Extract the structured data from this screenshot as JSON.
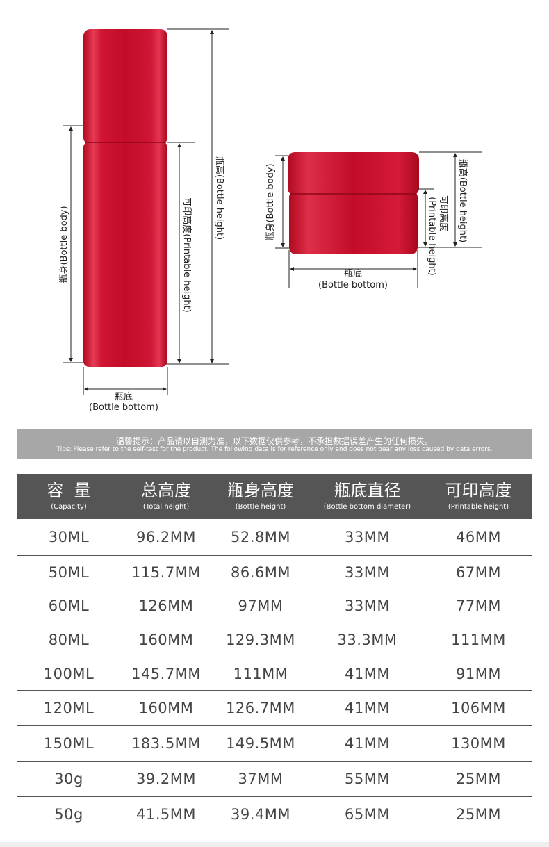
{
  "diagram": {
    "bottle": {
      "height_label": "瓶高(Bottle height)",
      "body_label": "瓶身(Bottle body)",
      "printable_label": "可印高度(Printable height)",
      "bottom_cn": "瓶底",
      "bottom_en": "(Bottle bottom)"
    },
    "jar": {
      "height_label": "瓶高(Bottle height)",
      "body_label": "瓶身(Bottle body)",
      "printable_cn": "可印高度",
      "printable_en": "(Printable height)",
      "bottom_cn": "瓶底",
      "bottom_en": "(Bottle bottom)"
    },
    "colors": {
      "red": "#c8102e",
      "line": "#222222"
    }
  },
  "tips": {
    "cn": "温馨提示：产品请以自测为准，以下数据仅供参考，不承担数据误差产生的任何损失。",
    "en": "Tips: Please refer to the self-test for the product. The following data is for reference only and does not bear any loss caused by data errors."
  },
  "table": {
    "headers": [
      {
        "cn": "容  量",
        "en": "(Capacity)"
      },
      {
        "cn": "总高度",
        "en": "(Total height)"
      },
      {
        "cn": "瓶身高度",
        "en": "(Bottle height)"
      },
      {
        "cn": "瓶底直径",
        "en": "(Bottle bottom diameter)"
      },
      {
        "cn": "可印高度",
        "en": "(Printable height)"
      }
    ],
    "rows": [
      [
        "30ML",
        "96.2MM",
        "52.8MM",
        "33MM",
        "46MM"
      ],
      [
        "50ML",
        "115.7MM",
        "86.6MM",
        "33MM",
        "67MM"
      ],
      [
        "60ML",
        "126MM",
        "97MM",
        "33MM",
        "77MM"
      ],
      [
        "80ML",
        "160MM",
        "129.3MM",
        "33.3MM",
        "111MM"
      ],
      [
        "100ML",
        "145.7MM",
        "111MM",
        "41MM",
        "91MM"
      ],
      [
        "120ML",
        "160MM",
        "126.7MM",
        "41MM",
        "106MM"
      ],
      [
        "150ML",
        "183.5MM",
        "149.5MM",
        "41MM",
        "130MM"
      ],
      [
        "30g",
        "39.2MM",
        "37MM",
        "55MM",
        "25MM"
      ],
      [
        "50g",
        "41.5MM",
        "39.4MM",
        "65MM",
        "25MM"
      ]
    ]
  }
}
